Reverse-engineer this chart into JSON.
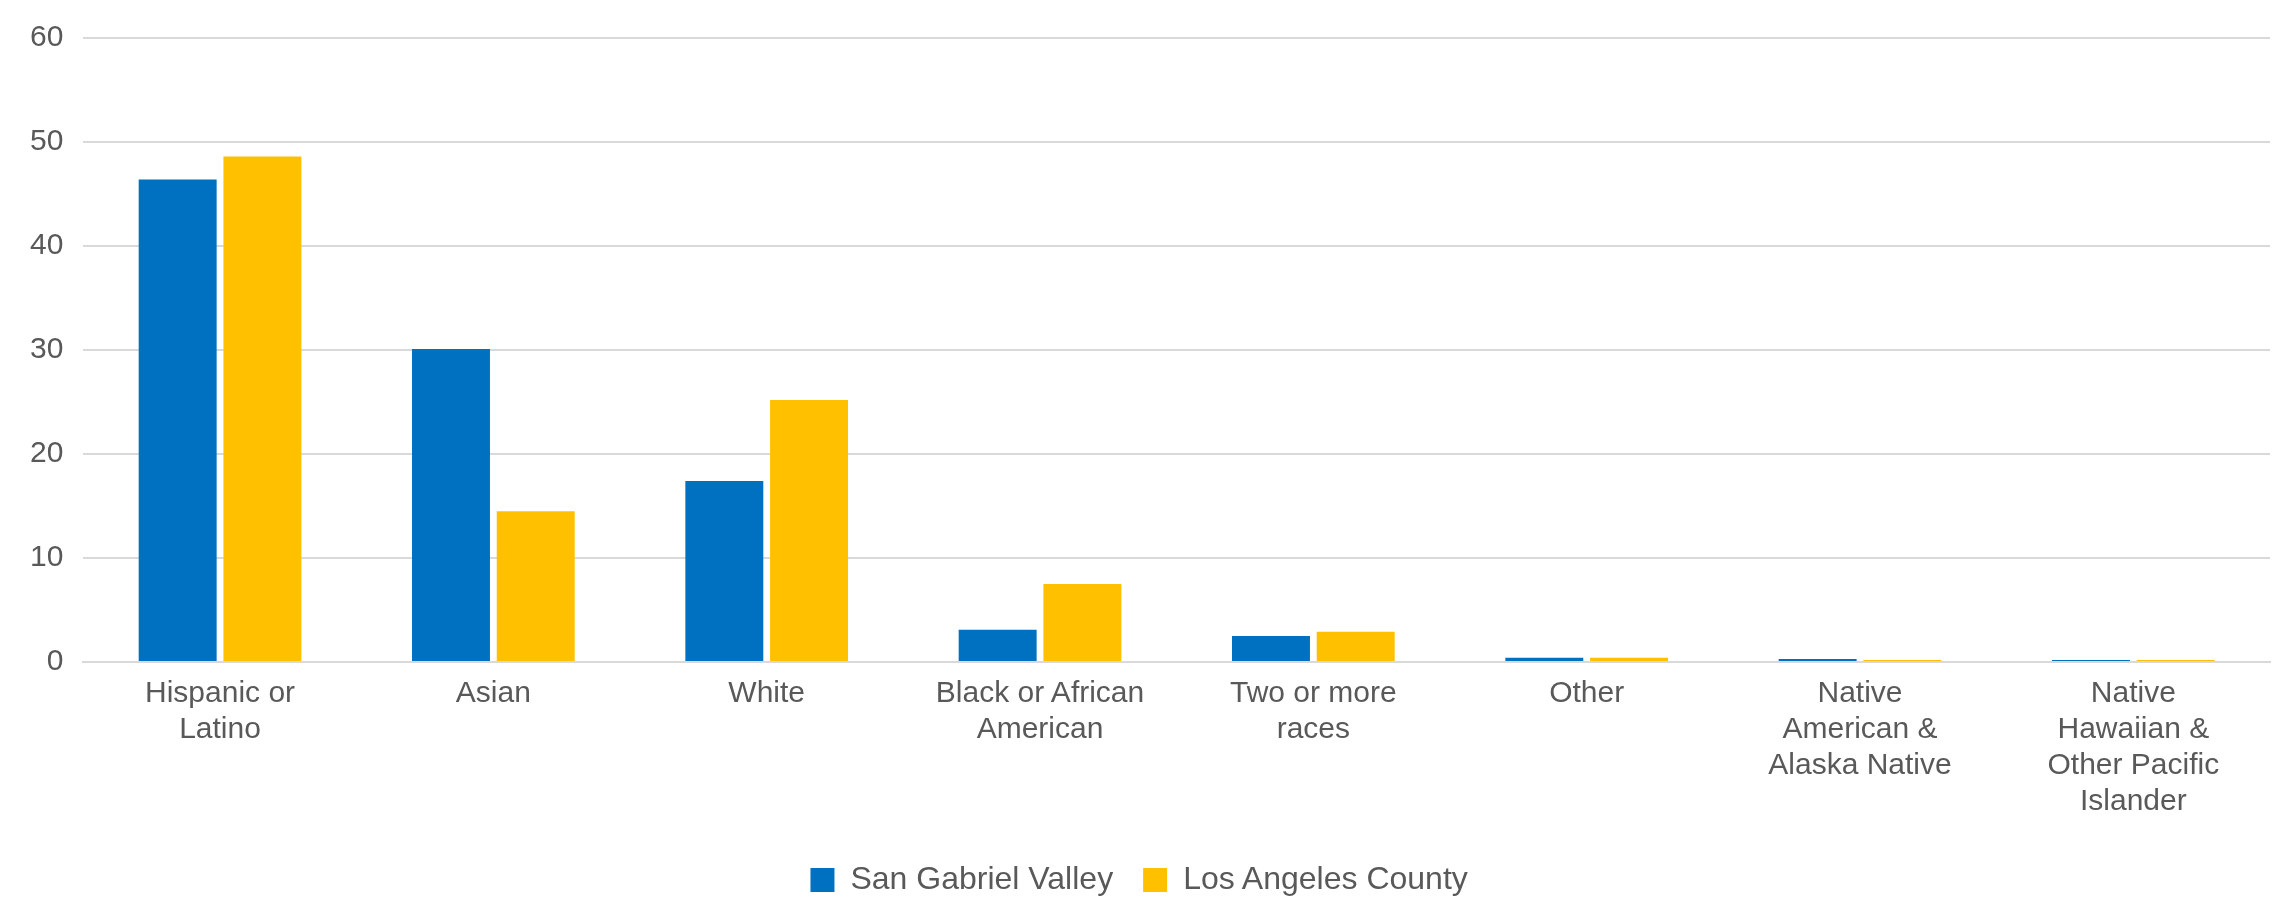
{
  "chart_data": {
    "type": "bar",
    "categories": [
      "Hispanic or Latino",
      "Asian",
      "White",
      "Black or African American",
      "Two or more races",
      "Other",
      "Native American & Alaska Native",
      "Native Hawaiian & Other Pacific Islander"
    ],
    "series": [
      {
        "name": "San Gabriel Valley",
        "color": "#0070c0",
        "values": [
          46.4,
          30.1,
          17.4,
          3.1,
          2.5,
          0.4,
          0.3,
          0.2
        ]
      },
      {
        "name": "Los Angeles County",
        "color": "#ffc000",
        "values": [
          48.6,
          14.5,
          25.2,
          7.5,
          2.9,
          0.4,
          0.2,
          0.2
        ]
      }
    ],
    "ylim": [
      0,
      60
    ],
    "yticks": [
      0,
      10,
      20,
      30,
      40,
      50,
      60
    ],
    "grid": "y",
    "legend": "bottom"
  }
}
